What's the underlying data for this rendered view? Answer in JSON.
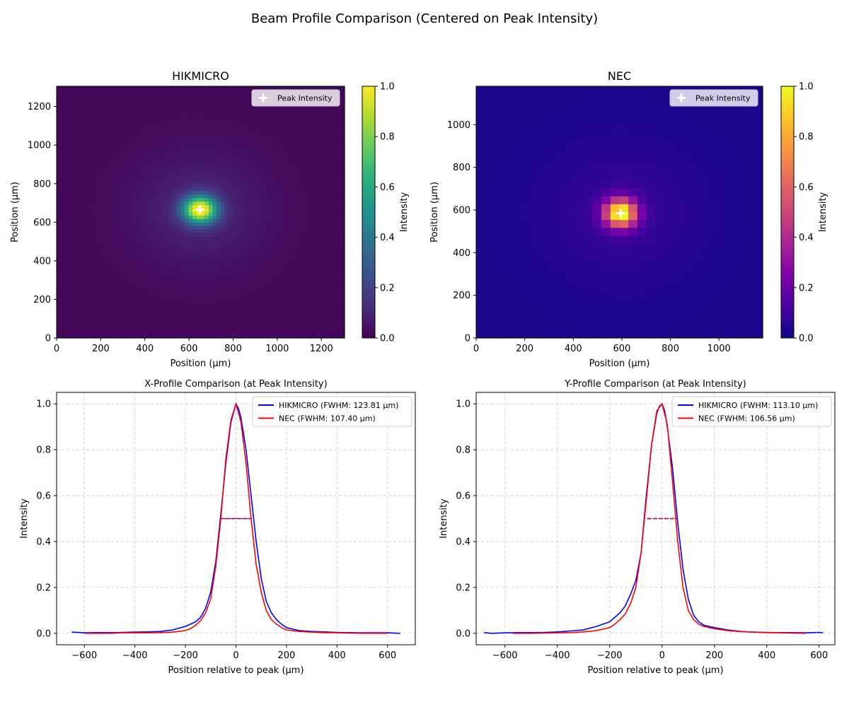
{
  "figure": {
    "suptitle": "Beam Profile Comparison (Centered on Peak Intensity)"
  },
  "chart_data": [
    {
      "type": "heatmap",
      "title": "HIKMICRO",
      "xlabel": "Position (µm)",
      "ylabel": "Position (µm)",
      "xlim": [
        0,
        1305
      ],
      "ylim": [
        0,
        1305
      ],
      "xticks": [
        0,
        200,
        400,
        600,
        800,
        1000,
        1200
      ],
      "yticks": [
        0,
        200,
        400,
        600,
        800,
        1000,
        1200
      ],
      "colormap": "viridis",
      "colorbar": {
        "label": "Intensity",
        "range": [
          0,
          1
        ],
        "ticks": [
          "0.0",
          "0.2",
          "0.4",
          "0.6",
          "0.8",
          "1.0"
        ]
      },
      "peak": {
        "x": 650,
        "y": 665
      },
      "spot_fwhm": {
        "x": 124,
        "y": 113
      },
      "grid_cells": 72,
      "legend": {
        "label": "Peak Intensity",
        "placement": "top-right"
      }
    },
    {
      "type": "heatmap",
      "title": "NEC",
      "xlabel": "Position (µm)",
      "ylabel": "Position (µm)",
      "xlim": [
        0,
        1180
      ],
      "ylim": [
        0,
        1180
      ],
      "xticks": [
        0,
        200,
        400,
        600,
        800,
        1000
      ],
      "yticks": [
        0,
        200,
        400,
        600,
        800,
        1000
      ],
      "colormap": "plasma",
      "colorbar": {
        "label": "Intensity",
        "range": [
          0,
          1
        ],
        "ticks": [
          "0.0",
          "0.2",
          "0.4",
          "0.6",
          "0.8",
          "1.0"
        ]
      },
      "peak": {
        "x": 595,
        "y": 585
      },
      "spot_fwhm": {
        "x": 107,
        "y": 107
      },
      "grid_cells": 32,
      "legend": {
        "label": "Peak Intensity",
        "placement": "top-right"
      }
    },
    {
      "type": "line",
      "title": "X-Profile Comparison (at Peak Intensity)",
      "xlabel": "Position relative to peak (µm)",
      "ylabel": "Intensity",
      "xlim": [
        -710,
        710
      ],
      "ylim": [
        -0.05,
        1.05
      ],
      "xticks": [
        -600,
        -400,
        -200,
        0,
        200,
        400,
        600
      ],
      "yticks": [
        0.0,
        0.2,
        0.4,
        0.6,
        0.8,
        1.0
      ],
      "grid": true,
      "legend": {
        "placement": "top-right"
      },
      "series": [
        {
          "name": "HIKMICRO (FWHM: 123.81 µm)",
          "color": "#0000ff",
          "fwhm": 123.81,
          "x": [
            -650,
            -600,
            -550,
            -500,
            -450,
            -400,
            -350,
            -300,
            -250,
            -200,
            -180,
            -160,
            -140,
            -120,
            -100,
            -80,
            -60,
            -40,
            -20,
            0,
            10,
            20,
            40,
            60,
            80,
            100,
            120,
            140,
            160,
            180,
            200,
            250,
            300,
            350,
            400,
            450,
            500,
            550,
            600,
            650
          ],
          "y": [
            0.005,
            0.002,
            0.003,
            0.003,
            0.004,
            0.005,
            0.006,
            0.008,
            0.015,
            0.03,
            0.04,
            0.05,
            0.07,
            0.11,
            0.18,
            0.31,
            0.52,
            0.74,
            0.92,
            1.0,
            0.98,
            0.94,
            0.8,
            0.6,
            0.4,
            0.24,
            0.14,
            0.09,
            0.06,
            0.04,
            0.025,
            0.012,
            0.008,
            0.006,
            0.004,
            0.003,
            0.002,
            0.002,
            0.002,
            0.0
          ]
        },
        {
          "name": "NEC (FWHM: 107.40 µm)",
          "color": "#ff0000",
          "fwhm": 107.4,
          "x": [
            -600,
            -550,
            -500,
            -450,
            -400,
            -350,
            -300,
            -250,
            -200,
            -180,
            -160,
            -140,
            -120,
            -100,
            -80,
            -60,
            -40,
            -20,
            0,
            20,
            40,
            60,
            80,
            100,
            120,
            140,
            160,
            180,
            200,
            250,
            300,
            350,
            400,
            450,
            500,
            550,
            600
          ],
          "y": [
            0.0,
            0.0,
            0.0,
            0.002,
            0.002,
            0.002,
            0.003,
            0.005,
            0.012,
            0.02,
            0.035,
            0.055,
            0.09,
            0.15,
            0.29,
            0.5,
            0.76,
            0.93,
            1.0,
            0.92,
            0.74,
            0.5,
            0.3,
            0.18,
            0.1,
            0.06,
            0.04,
            0.025,
            0.015,
            0.008,
            0.005,
            0.003,
            0.002,
            0.001,
            0.0,
            0.0,
            0.0
          ]
        }
      ]
    },
    {
      "type": "line",
      "title": "Y-Profile Comparison (at Peak Intensity)",
      "xlabel": "Position relative to peak (µm)",
      "ylabel": "Intensity",
      "xlim": [
        -710,
        660
      ],
      "ylim": [
        -0.05,
        1.05
      ],
      "xticks": [
        -600,
        -400,
        -200,
        0,
        200,
        400,
        600
      ],
      "yticks": [
        0.0,
        0.2,
        0.4,
        0.6,
        0.8,
        1.0
      ],
      "grid": true,
      "legend": {
        "placement": "top-right"
      },
      "series": [
        {
          "name": "HIKMICRO (FWHM: 113.10 µm)",
          "color": "#0000ff",
          "fwhm": 113.1,
          "x": [
            -680,
            -650,
            -600,
            -550,
            -500,
            -450,
            -400,
            -350,
            -300,
            -250,
            -200,
            -180,
            -160,
            -140,
            -120,
            -100,
            -80,
            -60,
            -40,
            -20,
            -10,
            0,
            10,
            20,
            40,
            60,
            80,
            100,
            120,
            140,
            160,
            180,
            200,
            250,
            300,
            350,
            400,
            450,
            500,
            550,
            600,
            615
          ],
          "y": [
            0.003,
            0.0,
            0.002,
            0.003,
            0.003,
            0.004,
            0.006,
            0.01,
            0.015,
            0.03,
            0.05,
            0.07,
            0.09,
            0.12,
            0.17,
            0.23,
            0.35,
            0.6,
            0.82,
            0.96,
            0.99,
            1.0,
            0.97,
            0.9,
            0.72,
            0.48,
            0.28,
            0.15,
            0.08,
            0.05,
            0.035,
            0.03,
            0.025,
            0.015,
            0.008,
            0.005,
            0.004,
            0.003,
            0.003,
            0.002,
            0.004,
            0.002
          ]
        },
        {
          "name": "NEC (FWHM: 106.56 µm)",
          "color": "#ff0000",
          "fwhm": 106.56,
          "x": [
            -570,
            -500,
            -450,
            -400,
            -350,
            -300,
            -250,
            -200,
            -180,
            -160,
            -140,
            -120,
            -100,
            -80,
            -60,
            -40,
            -20,
            0,
            20,
            40,
            60,
            80,
            100,
            120,
            140,
            160,
            180,
            200,
            250,
            300,
            350,
            400,
            450,
            500,
            550
          ],
          "y": [
            0.0,
            0.0,
            0.001,
            0.002,
            0.003,
            0.006,
            0.012,
            0.025,
            0.04,
            0.06,
            0.085,
            0.13,
            0.2,
            0.35,
            0.58,
            0.82,
            0.97,
            1.0,
            0.91,
            0.66,
            0.4,
            0.2,
            0.1,
            0.06,
            0.04,
            0.03,
            0.025,
            0.02,
            0.012,
            0.007,
            0.005,
            0.003,
            0.002,
            0.001,
            0.0
          ]
        }
      ]
    }
  ]
}
